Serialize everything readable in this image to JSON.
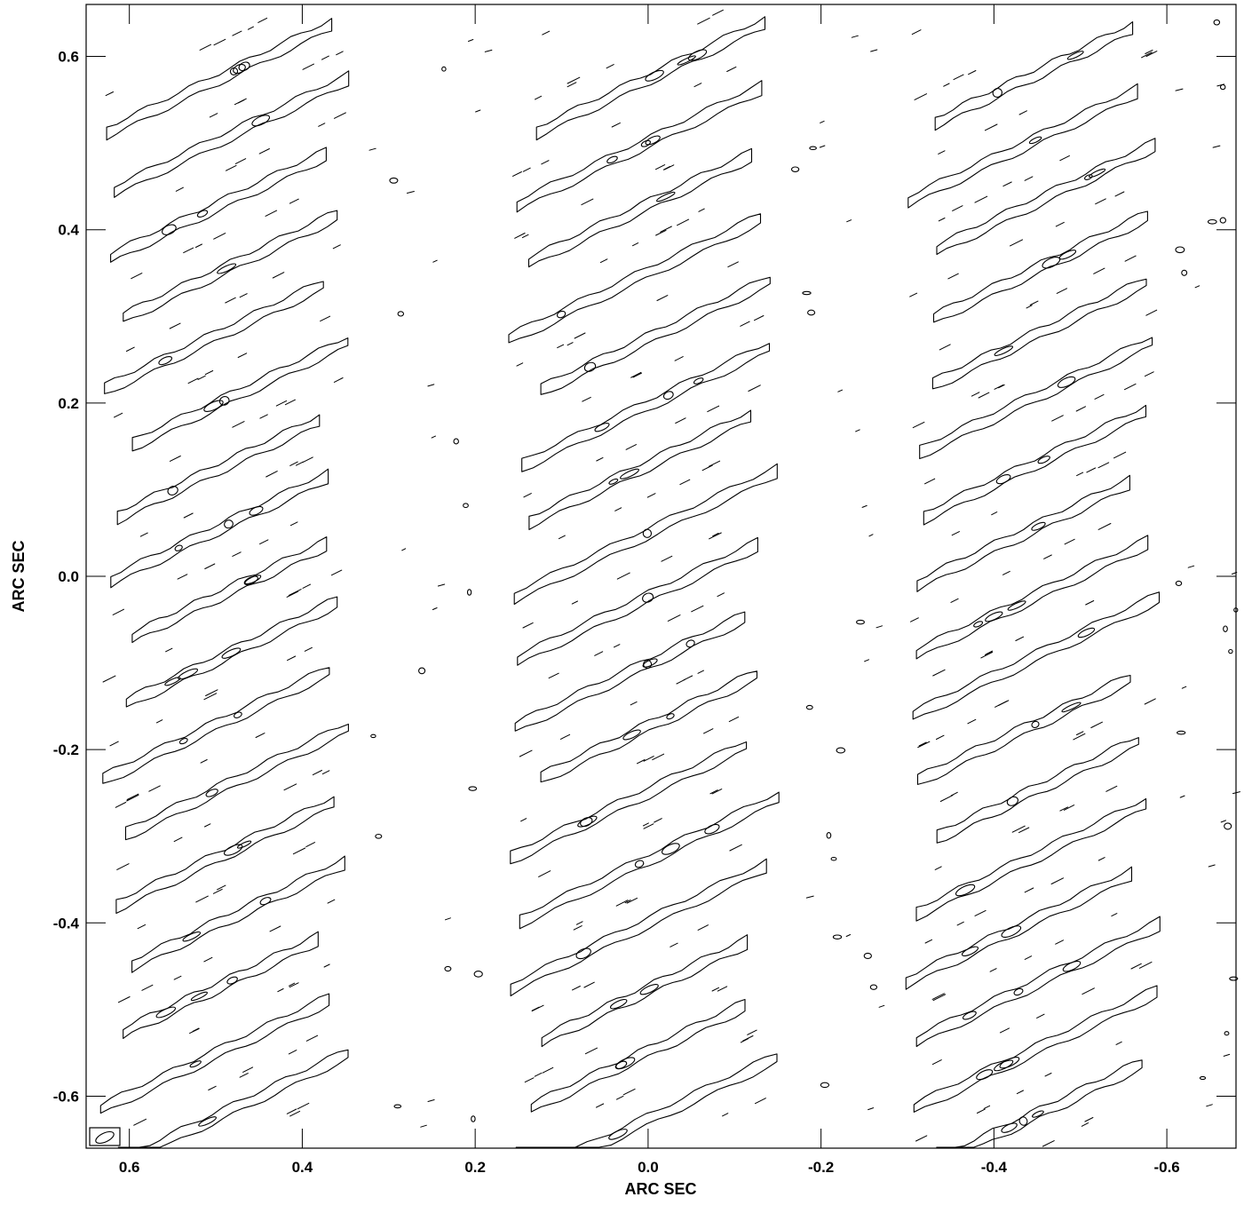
{
  "chart_data": {
    "type": "contour",
    "xlabel": "ARC SEC",
    "ylabel": "ARC SEC",
    "xlim": [
      0.65,
      -0.68
    ],
    "ylim": [
      -0.66,
      0.66
    ],
    "x_ticks": [
      0.6,
      0.4,
      0.2,
      0.0,
      -0.2,
      -0.4,
      -0.6
    ],
    "x_tick_labels": [
      "0.6",
      "0.4",
      "0.2",
      "0.0",
      "-0.2",
      "-0.4",
      "-0.6"
    ],
    "y_ticks": [
      0.6,
      0.4,
      0.2,
      0.0,
      -0.2,
      -0.4,
      -0.6
    ],
    "y_tick_labels": [
      "0.6",
      "0.4",
      "0.2",
      "0.0",
      "-0.2",
      "-0.4",
      "-0.6"
    ],
    "stripes": [
      {
        "x_left": 0.65,
        "x_right": 0.33
      },
      {
        "x_left": 0.18,
        "x_right": -0.17
      },
      {
        "x_left": -0.28,
        "x_right": -0.61
      }
    ],
    "fringe_period_y": 0.075,
    "fringe_slope": 0.48,
    "beam_position": "bottom-left",
    "grid": false,
    "line_color": "#000000"
  }
}
